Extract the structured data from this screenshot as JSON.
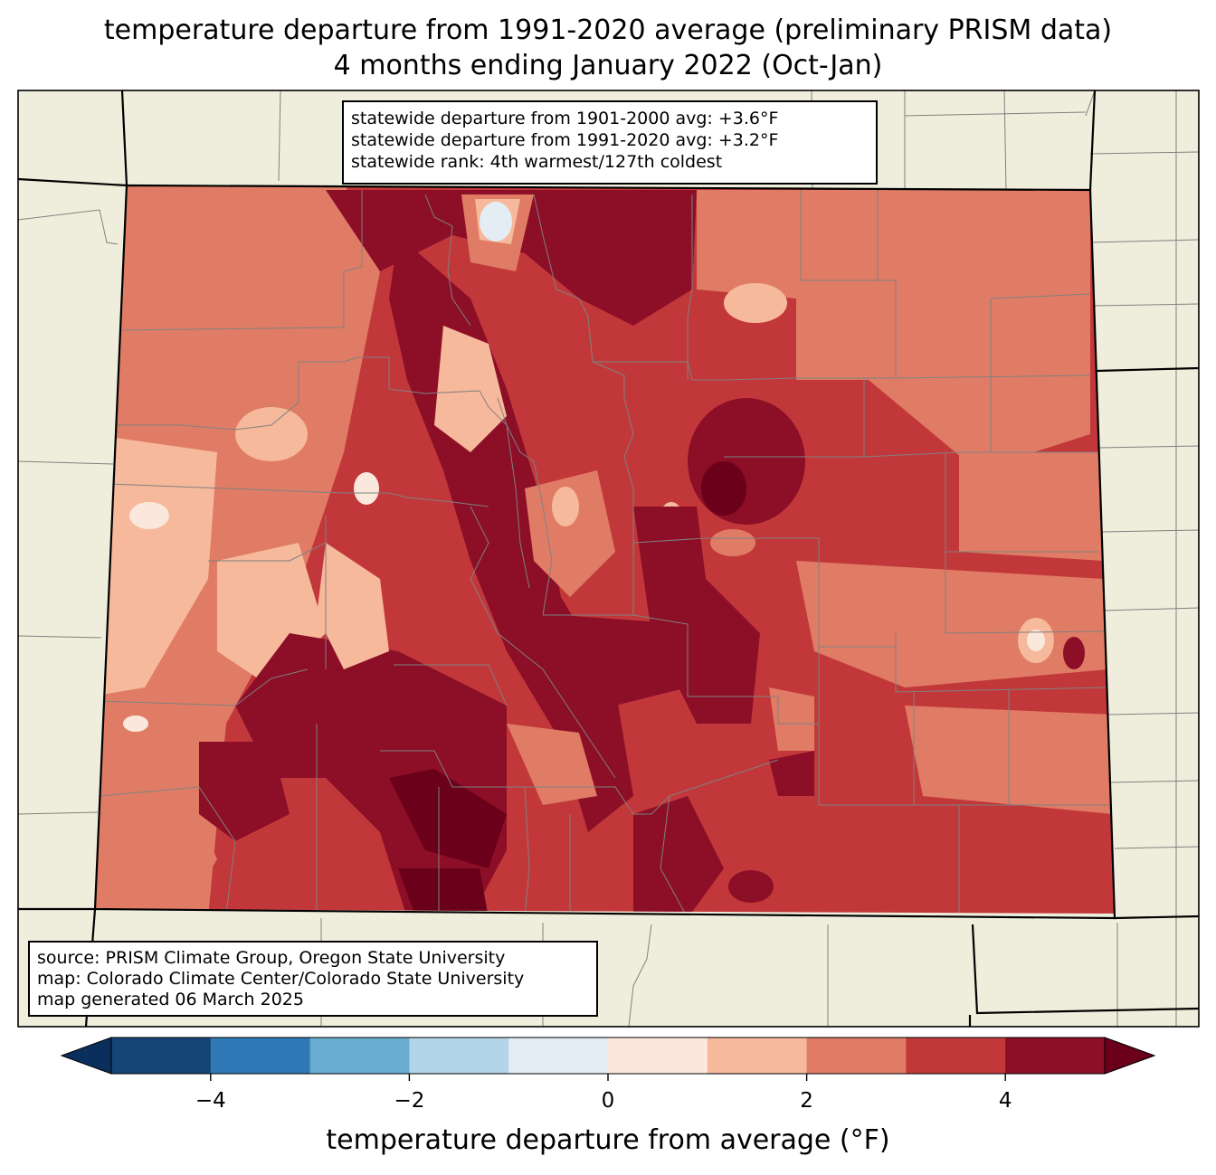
{
  "title": {
    "line1": "temperature departure from 1991-2020 average (preliminary PRISM data)",
    "line2": "4 months ending January 2022 (Oct-Jan)"
  },
  "stats_box": {
    "line1": "statewide departure from 1901-2000 avg: +3.6°F",
    "line2": "statewide departure from 1991-2020 avg: +3.2°F",
    "line3": "statewide rank: 4th warmest/127th coldest"
  },
  "source_box": {
    "line1": "source: PRISM Climate Group, Oregon State University",
    "line2": "map: Colorado Climate Center/Colorado State University",
    "line3": "map generated 06 March 2025"
  },
  "colorbar": {
    "label": "temperature departure from average (°F)",
    "levels": [
      -5,
      -4,
      -3,
      -2,
      -1,
      0,
      1,
      2,
      3,
      4,
      5
    ],
    "colors": [
      "#154577",
      "#2f7ab6",
      "#6aadd1",
      "#b2d5e7",
      "#e4edf3",
      "#fae8dd",
      "#f6b99c",
      "#e07c65",
      "#c2383a",
      "#8c0e27"
    ],
    "under_color": "#0b2f5c",
    "over_color": "#6a0019",
    "ticks": [
      {
        "value": -4,
        "label": "−4"
      },
      {
        "value": -2,
        "label": "−2"
      },
      {
        "value": 0,
        "label": "0"
      },
      {
        "value": 2,
        "label": "2"
      },
      {
        "value": 4,
        "label": "4"
      }
    ]
  },
  "map": {
    "land_color": "#efeedc",
    "county_line_color": "#808080",
    "state_line_color": "#000000"
  }
}
